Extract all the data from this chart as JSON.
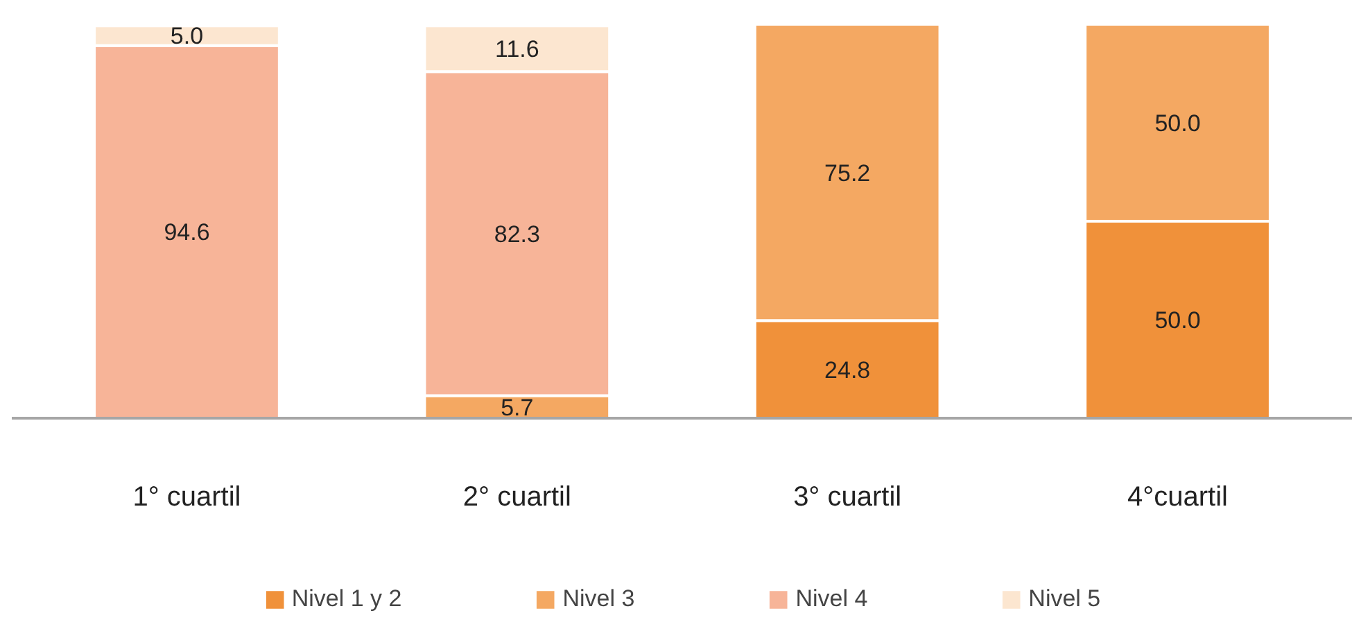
{
  "chart_data": {
    "type": "bar",
    "stacked": true,
    "legend": "bottom",
    "categories": [
      "1° cuartil",
      "2° cuartil",
      "3° cuartil",
      "4°cuartil"
    ],
    "series": [
      {
        "name": "Nivel 1 y 2",
        "color": "#f0913a",
        "values": [
          null,
          null,
          24.8,
          50.0
        ],
        "value_labels": [
          null,
          null,
          "24.8",
          "50.0"
        ]
      },
      {
        "name": "Nivel 3",
        "color": "#f4a862",
        "values": [
          null,
          5.7,
          75.2,
          50.0
        ],
        "value_labels": [
          null,
          "5.7",
          "75.2",
          "50.0"
        ]
      },
      {
        "name": "Nivel 4",
        "color": "#f7b498",
        "values": [
          94.6,
          82.3,
          null,
          null
        ],
        "value_labels": [
          "94.6",
          "82.3",
          null,
          null
        ]
      },
      {
        "name": "Nivel 5",
        "color": "#fce6d0",
        "values": [
          5.0,
          11.6,
          null,
          null
        ],
        "value_labels": [
          "5.0",
          "11.6",
          null,
          null
        ]
      }
    ]
  }
}
